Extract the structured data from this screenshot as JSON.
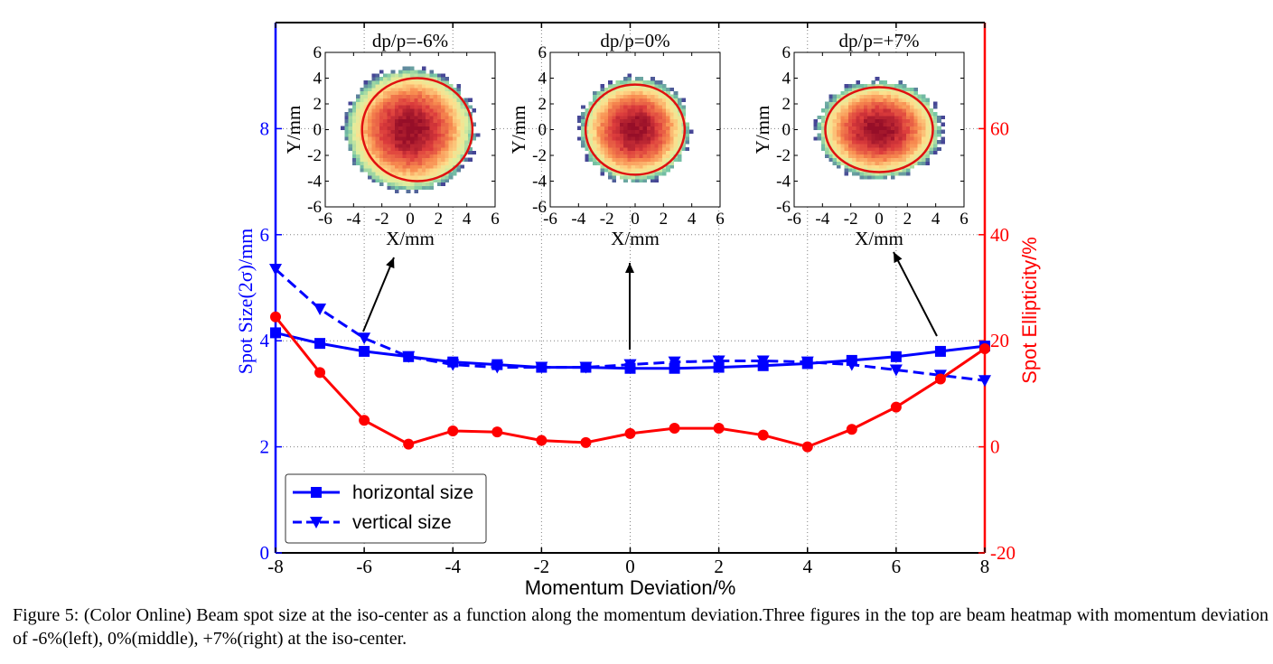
{
  "chart_data": {
    "type": "line",
    "x_axis": {
      "label": "Momentum Deviation/%",
      "range": [
        -8,
        8
      ],
      "ticks": [
        -8,
        -6,
        -4,
        -2,
        0,
        2,
        4,
        6,
        8
      ],
      "tick_labels": [
        "-8",
        "-6",
        "-4",
        "-2",
        "0",
        "2",
        "4",
        "6",
        "8"
      ]
    },
    "y_left_axis": {
      "label": "Spot Size(2σ)/mm",
      "range": [
        0,
        10
      ],
      "ticks": [
        0,
        2,
        4,
        6,
        8
      ],
      "tick_labels": [
        "0",
        "2",
        "4",
        "6",
        "8"
      ],
      "color": "#0000ff"
    },
    "y_right_axis": {
      "label": "Spot Ellipticity/%",
      "range": [
        -20,
        80
      ],
      "ticks": [
        -20,
        0,
        20,
        40,
        60
      ],
      "tick_labels": [
        "-20",
        "0",
        "20",
        "40",
        "60"
      ],
      "color": "#ff0000"
    },
    "grid": true,
    "legend": {
      "placement": "bottom-left",
      "entries": [
        {
          "label": "horizontal size",
          "marker": "square",
          "style": "solid",
          "color": "#0000ff"
        },
        {
          "label": "vertical size",
          "marker": "triangle-down",
          "style": "dashed",
          "color": "#0000ff"
        }
      ]
    },
    "series": [
      {
        "name": "horizontal size",
        "axis": "left",
        "color": "#0000ff",
        "marker": "square",
        "style": "solid",
        "x": [
          -8,
          -7,
          -6,
          -5,
          -4,
          -3,
          -2,
          -1,
          0,
          1,
          2,
          3,
          4,
          5,
          6,
          7,
          8
        ],
        "y": [
          4.15,
          3.95,
          3.8,
          3.7,
          3.6,
          3.55,
          3.5,
          3.5,
          3.48,
          3.48,
          3.5,
          3.53,
          3.57,
          3.63,
          3.7,
          3.8,
          3.9
        ]
      },
      {
        "name": "vertical size",
        "axis": "left",
        "color": "#0000ff",
        "marker": "triangle-down",
        "style": "dashed",
        "x": [
          -8,
          -7,
          -6,
          -5,
          -4,
          -3,
          -2,
          -1,
          0,
          1,
          2,
          3,
          4,
          5,
          6,
          7,
          8
        ],
        "y": [
          5.35,
          4.6,
          4.05,
          3.7,
          3.55,
          3.5,
          3.5,
          3.5,
          3.55,
          3.6,
          3.62,
          3.62,
          3.6,
          3.55,
          3.45,
          3.35,
          3.25
        ]
      },
      {
        "name": "Spot Ellipticity",
        "axis": "right",
        "color": "#ff0000",
        "marker": "circle",
        "style": "solid",
        "x": [
          -8,
          -7,
          -6,
          -5,
          -4,
          -3,
          -2,
          -1,
          0,
          1,
          2,
          3,
          4,
          5,
          6,
          7,
          8
        ],
        "y": [
          24.5,
          14,
          5,
          0.5,
          3,
          2.8,
          1.2,
          0.8,
          2.5,
          3.5,
          3.5,
          2.2,
          0,
          3.3,
          7.5,
          12.8,
          18.5
        ]
      }
    ],
    "insets": [
      {
        "title": "dp/p=-6%",
        "xlabel": "X/mm",
        "ylabel": "Y/mm",
        "xlim": [
          -6,
          6
        ],
        "ylim": [
          -6,
          6
        ],
        "ticks": [
          -6,
          -4,
          -2,
          0,
          2,
          4,
          6
        ],
        "tick_labels": [
          "-6",
          "-4",
          "-2",
          "0",
          "2",
          "4",
          "6"
        ],
        "spot_rx": 4.6,
        "spot_ry": 4.8,
        "ellipse_center": [
          0.5,
          0
        ],
        "ellipse_rx": 3.9,
        "ellipse_ry": 4.0,
        "arrow_from_x": -6
      },
      {
        "title": "dp/p=0%",
        "xlabel": "X/mm",
        "ylabel": "Y/mm",
        "xlim": [
          -6,
          6
        ],
        "ylim": [
          -6,
          6
        ],
        "ticks": [
          -6,
          -4,
          -2,
          0,
          2,
          4,
          6
        ],
        "tick_labels": [
          "-6",
          "-4",
          "-2",
          "0",
          "2",
          "4",
          "6"
        ],
        "spot_rx": 3.9,
        "spot_ry": 4.1,
        "ellipse_center": [
          0,
          0
        ],
        "ellipse_rx": 3.5,
        "ellipse_ry": 3.5,
        "arrow_from_x": 0
      },
      {
        "title": "dp/p=+7%",
        "xlabel": "X/mm",
        "ylabel": "Y/mm",
        "xlim": [
          -6,
          6
        ],
        "ylim": [
          -6,
          6
        ],
        "ticks": [
          -6,
          -4,
          -2,
          0,
          2,
          4,
          6
        ],
        "tick_labels": [
          "-6",
          "-4",
          "-2",
          "0",
          "2",
          "4",
          "6"
        ],
        "spot_rx": 4.4,
        "spot_ry": 3.8,
        "ellipse_center": [
          0,
          0
        ],
        "ellipse_rx": 3.8,
        "ellipse_ry": 3.3,
        "arrow_from_x": 7
      }
    ]
  },
  "caption": "Figure 5: (Color Online) Beam spot size at the iso-center as a function along the momentum deviation.Three figures in the top are beam heatmap with momentum deviation of -6%(left), 0%(middle), +7%(right) at the iso-center."
}
